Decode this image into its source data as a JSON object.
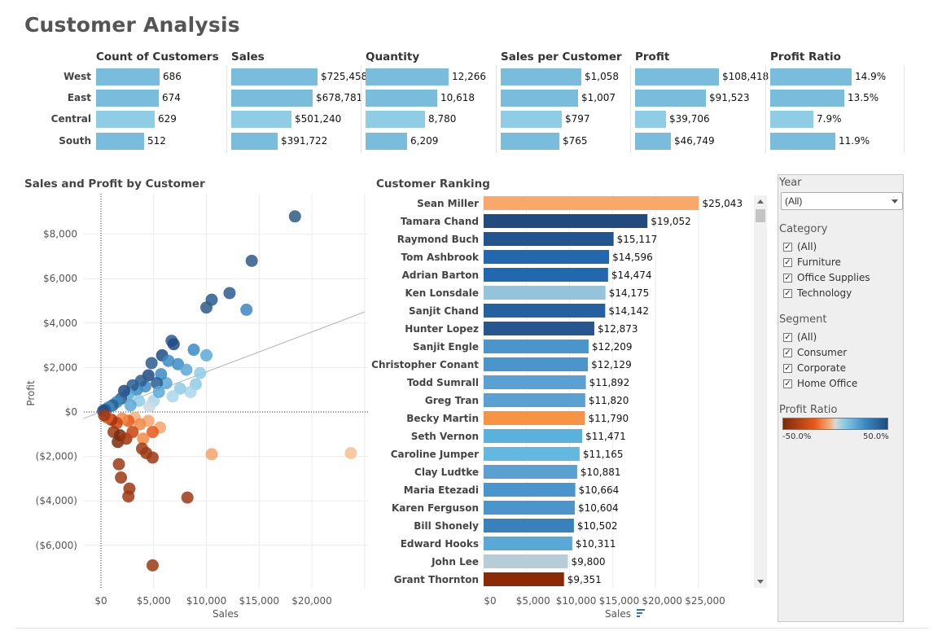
{
  "page": {
    "title": "Customer Analysis"
  },
  "kpi": {
    "regions": [
      "West",
      "East",
      "Central",
      "South"
    ],
    "columns": [
      {
        "title": "Count of Customers",
        "raw": [
          686,
          674,
          629,
          512
        ],
        "labels": [
          "686",
          "674",
          "629",
          "512"
        ]
      },
      {
        "title": "Sales",
        "raw": [
          725458,
          678781,
          501240,
          391722
        ],
        "labels": [
          "$725,458",
          "$678,781",
          "$501,240",
          "$391,722"
        ]
      },
      {
        "title": "Quantity",
        "raw": [
          12266,
          10618,
          8780,
          6209
        ],
        "labels": [
          "12,266",
          "10,618",
          "8,780",
          "6,209"
        ]
      },
      {
        "title": "Sales per Customer",
        "raw": [
          1058,
          1007,
          797,
          765
        ],
        "labels": [
          "$1,058",
          "$1,007",
          "$797",
          "$765"
        ]
      },
      {
        "title": "Profit",
        "raw": [
          108418,
          91523,
          39706,
          46749
        ],
        "labels": [
          "$108,418",
          "$91,523",
          "$39,706",
          "$46,749"
        ]
      },
      {
        "title": "Profit Ratio",
        "raw": [
          14.9,
          13.5,
          7.9,
          11.9
        ],
        "labels": [
          "14.9%",
          "13.5%",
          "7.9%",
          "11.9%"
        ]
      }
    ],
    "colors": [
      "#79bcdc",
      "#79bcdc",
      "#8ecde4",
      "#79bcdc"
    ]
  },
  "scatter": {
    "title": "Sales and Profit by Customer",
    "xlabel": "Sales",
    "ylabel": "Profit"
  },
  "ranking": {
    "title": "Customer Ranking",
    "xlabel": "Sales"
  },
  "filters": {
    "year": {
      "title": "Year",
      "selected": "(All)"
    },
    "category": {
      "title": "Category",
      "items": [
        "(All)",
        "Furniture",
        "Office Supplies",
        "Technology"
      ]
    },
    "segment": {
      "title": "Segment",
      "items": [
        "(All)",
        "Consumer",
        "Corporate",
        "Home Office"
      ]
    },
    "legend": {
      "title": "Profit Ratio",
      "min_label": "-50.0%",
      "max_label": "50.0%"
    }
  },
  "chart_data": [
    {
      "type": "scatter",
      "title": "Sales and Profit by Customer",
      "xlabel": "Sales",
      "ylabel": "Profit",
      "xlim": [
        -1500,
        25000
      ],
      "ylim": [
        -8500,
        9500
      ],
      "x_ticks": [
        0,
        5000,
        10000,
        15000,
        20000
      ],
      "x_tick_labels": [
        "$0",
        "$5,000",
        "$10,000",
        "$15,000",
        "$20,000"
      ],
      "y_ticks": [
        8000,
        6000,
        4000,
        2000,
        0,
        -2000,
        -4000,
        -6000
      ],
      "y_tick_labels": [
        "$8,000",
        "$6,000",
        "$4,000",
        "$2,000",
        "$0",
        "($2,000)",
        "($4,000)",
        "($6,000)"
      ],
      "trend_line": [
        [
          -1700,
          -300
        ],
        [
          25000,
          4500
        ]
      ],
      "grid": true,
      "points": [
        {
          "x": 18400,
          "y": 8800,
          "c": "#2f5a86"
        },
        {
          "x": 14300,
          "y": 6800,
          "c": "#2f5a86"
        },
        {
          "x": 12200,
          "y": 5350,
          "c": "#2a5d91"
        },
        {
          "x": 13800,
          "y": 4600,
          "c": "#3c86c0"
        },
        {
          "x": 10500,
          "y": 5050,
          "c": "#2a5d91"
        },
        {
          "x": 10000,
          "y": 4700,
          "c": "#2f5a86"
        },
        {
          "x": 6700,
          "y": 3200,
          "c": "#2a5d91"
        },
        {
          "x": 6900,
          "y": 3050,
          "c": "#1e4b84"
        },
        {
          "x": 8800,
          "y": 2800,
          "c": "#3b8bc4"
        },
        {
          "x": 10000,
          "y": 2550,
          "c": "#5aa8d6"
        },
        {
          "x": 5800,
          "y": 2550,
          "c": "#1e4b84"
        },
        {
          "x": 4800,
          "y": 2200,
          "c": "#2a5d91"
        },
        {
          "x": 6400,
          "y": 2300,
          "c": "#3b8bc4"
        },
        {
          "x": 7300,
          "y": 2150,
          "c": "#3b8bc4"
        },
        {
          "x": 8100,
          "y": 1900,
          "c": "#5aa8d6"
        },
        {
          "x": 9400,
          "y": 1750,
          "c": "#8ecde4"
        },
        {
          "x": 9000,
          "y": 1250,
          "c": "#8ecde4"
        },
        {
          "x": 8500,
          "y": 900,
          "c": "#a9d6ea"
        },
        {
          "x": 7500,
          "y": 1050,
          "c": "#8ecde4"
        },
        {
          "x": 6800,
          "y": 700,
          "c": "#a9d6ea"
        },
        {
          "x": 6200,
          "y": 1300,
          "c": "#5aa8d6"
        },
        {
          "x": 5700,
          "y": 1700,
          "c": "#3b8bc4"
        },
        {
          "x": 5300,
          "y": 1300,
          "c": "#2a5d91"
        },
        {
          "x": 4500,
          "y": 1650,
          "c": "#1e4b84"
        },
        {
          "x": 4200,
          "y": 1150,
          "c": "#3b8bc4"
        },
        {
          "x": 3800,
          "y": 1400,
          "c": "#2a5d91"
        },
        {
          "x": 3400,
          "y": 1000,
          "c": "#3b8bc4"
        },
        {
          "x": 3000,
          "y": 1200,
          "c": "#2a5d91"
        },
        {
          "x": 2600,
          "y": 800,
          "c": "#5aa8d6"
        },
        {
          "x": 2200,
          "y": 950,
          "c": "#1e4b84"
        },
        {
          "x": 1900,
          "y": 600,
          "c": "#2a5d91"
        },
        {
          "x": 1500,
          "y": 450,
          "c": "#3b8bc4"
        },
        {
          "x": 1100,
          "y": 300,
          "c": "#2a5d91"
        },
        {
          "x": 700,
          "y": 200,
          "c": "#3b8bc4"
        },
        {
          "x": 400,
          "y": 100,
          "c": "#2a5d91"
        },
        {
          "x": 200,
          "y": 50,
          "c": "#1e4b84"
        },
        {
          "x": 5000,
          "y": 500,
          "c": "#a9d6ea"
        },
        {
          "x": 4600,
          "y": 250,
          "c": "#c9dbe3"
        },
        {
          "x": 3600,
          "y": 500,
          "c": "#8ecde4"
        },
        {
          "x": 5500,
          "y": 900,
          "c": "#5aa8d6"
        },
        {
          "x": 2800,
          "y": 300,
          "c": "#5aa8d6"
        },
        {
          "x": 3200,
          "y": -250,
          "c": "#f4b07e"
        },
        {
          "x": 4500,
          "y": -400,
          "c": "#f4a36a"
        },
        {
          "x": 5600,
          "y": -700,
          "c": "#f4a36a"
        },
        {
          "x": 4900,
          "y": -900,
          "c": "#e8581a"
        },
        {
          "x": 3700,
          "y": -550,
          "c": "#f28a47"
        },
        {
          "x": 2600,
          "y": -400,
          "c": "#e8581a"
        },
        {
          "x": 2000,
          "y": -300,
          "c": "#f28a47"
        },
        {
          "x": 1500,
          "y": -500,
          "c": "#c9440f"
        },
        {
          "x": 1000,
          "y": -350,
          "c": "#a0330c"
        },
        {
          "x": 600,
          "y": -250,
          "c": "#e8581a"
        },
        {
          "x": 300,
          "y": -150,
          "c": "#9c3a14"
        },
        {
          "x": 1200,
          "y": -900,
          "c": "#9c3a14"
        },
        {
          "x": 1800,
          "y": -1050,
          "c": "#7a2c0c"
        },
        {
          "x": 1600,
          "y": -1350,
          "c": "#7a2c0c"
        },
        {
          "x": 2400,
          "y": -1200,
          "c": "#a0330c"
        },
        {
          "x": 3000,
          "y": -900,
          "c": "#c9440f"
        },
        {
          "x": 4000,
          "y": -1200,
          "c": "#f28a47"
        },
        {
          "x": 3900,
          "y": -1650,
          "c": "#9c3a14"
        },
        {
          "x": 4300,
          "y": -1850,
          "c": "#9c3a14"
        },
        {
          "x": 4900,
          "y": -2050,
          "c": "#9c3a14"
        },
        {
          "x": 1700,
          "y": -2350,
          "c": "#9c3a14"
        },
        {
          "x": 1900,
          "y": -2950,
          "c": "#9c3a14"
        },
        {
          "x": 2700,
          "y": -3450,
          "c": "#9c3a14"
        },
        {
          "x": 2600,
          "y": -3800,
          "c": "#9c3a14"
        },
        {
          "x": 8200,
          "y": -3850,
          "c": "#9c3a14"
        },
        {
          "x": 4900,
          "y": -6900,
          "c": "#9c3a14"
        },
        {
          "x": 10500,
          "y": -1900,
          "c": "#f4a36a"
        },
        {
          "x": 23700,
          "y": -1850,
          "c": "#f8c08f"
        }
      ]
    },
    {
      "type": "bar",
      "title": "Customer Ranking",
      "xlabel": "Sales",
      "xlim": [
        0,
        27000
      ],
      "x_ticks": [
        0,
        5000,
        10000,
        15000,
        20000,
        25000
      ],
      "x_tick_labels": [
        "$0",
        "$5,000",
        "$10,000",
        "$15,000",
        "$20,000",
        "$25,000"
      ],
      "categories": [
        "Sean Miller",
        "Tamara Chand",
        "Raymond Buch",
        "Tom Ashbrook",
        "Adrian Barton",
        "Ken Lonsdale",
        "Sanjit Chand",
        "Hunter Lopez",
        "Sanjit Engle",
        "Christopher Conant",
        "Todd Sumrall",
        "Greg Tran",
        "Becky Martin",
        "Seth Vernon",
        "Caroline Jumper",
        "Clay Ludtke",
        "Maria Etezadi",
        "Karen Ferguson",
        "Bill Shonely",
        "Edward Hooks",
        "John Lee",
        "Grant Thornton"
      ],
      "values": [
        25043,
        19052,
        15117,
        14596,
        14474,
        14175,
        14142,
        12873,
        12209,
        12129,
        11892,
        11820,
        11790,
        11471,
        11165,
        10881,
        10664,
        10604,
        10502,
        10311,
        9800,
        9351
      ],
      "value_labels": [
        "$25,043",
        "$19,052",
        "$15,117",
        "$14,596",
        "$14,474",
        "$14,175",
        "$14,142",
        "$12,873",
        "$12,209",
        "$12,129",
        "$11,892",
        "$11,820",
        "$11,790",
        "$11,471",
        "$11,165",
        "$10,881",
        "$10,664",
        "$10,604",
        "$10,502",
        "$10,311",
        "$9,800",
        "$9,351"
      ],
      "colors": [
        "#f8a86b",
        "#234a7c",
        "#23548e",
        "#2268ae",
        "#2268ae",
        "#93c4dc",
        "#2560a0",
        "#27568e",
        "#4a95cb",
        "#4a95cb",
        "#5aa0d2",
        "#5aa0d2",
        "#f79444",
        "#5ab2dc",
        "#62b8de",
        "#5aa0d2",
        "#4a95cb",
        "#4a95cb",
        "#3a81bb",
        "#5aa8d6",
        "#b6ccd6",
        "#8c2a08"
      ]
    }
  ]
}
